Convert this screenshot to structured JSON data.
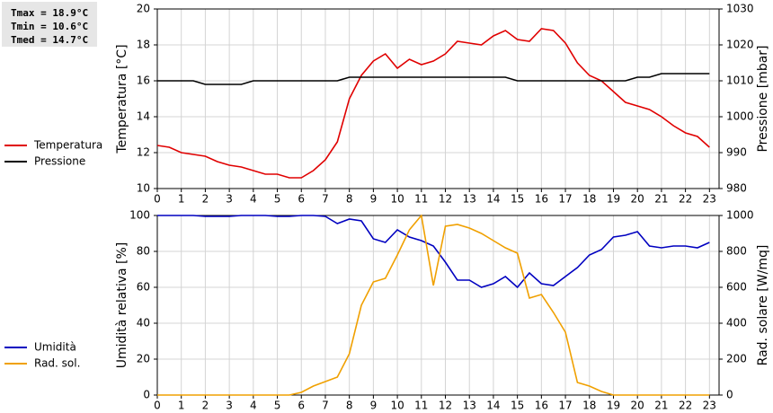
{
  "chart_data": [
    {
      "type": "line",
      "annotations": [
        "Tmax = 18.9°C",
        "Tmin = 10.6°C",
        "Tmed = 14.7°C"
      ],
      "ylabel": "Temperatura [°C]",
      "y2label": "Pressione [mbar]",
      "x": [
        0,
        0.5,
        1,
        1.5,
        2,
        2.5,
        3,
        3.5,
        4,
        4.5,
        5,
        5.5,
        6,
        6.5,
        7,
        7.5,
        8,
        8.5,
        9,
        9.5,
        10,
        10.5,
        11,
        11.5,
        12,
        12.5,
        13,
        13.5,
        14,
        14.5,
        15,
        15.5,
        16,
        16.5,
        17,
        17.5,
        18,
        18.5,
        19,
        19.5,
        20,
        20.5,
        21,
        21.5,
        22,
        22.5,
        23
      ],
      "xlim": [
        0,
        23.4
      ],
      "xticks": [
        0,
        1,
        2,
        3,
        4,
        5,
        6,
        7,
        8,
        9,
        10,
        11,
        12,
        13,
        14,
        15,
        16,
        17,
        18,
        19,
        20,
        21,
        22,
        23
      ],
      "ylim": [
        10,
        20
      ],
      "yticks": [
        10,
        12,
        14,
        16,
        18,
        20
      ],
      "y2lim": [
        980,
        1030
      ],
      "y2ticks": [
        980,
        990,
        1000,
        1010,
        1020,
        1030
      ],
      "grid": true,
      "series": [
        {
          "name": "Temperatura",
          "color": "#e00000",
          "values": [
            12.4,
            12.3,
            12.0,
            11.9,
            11.8,
            11.5,
            11.3,
            11.2,
            11.0,
            10.8,
            10.8,
            10.6,
            10.6,
            11.0,
            11.6,
            12.6,
            15.0,
            16.3,
            17.1,
            17.5,
            16.7,
            17.2,
            16.9,
            17.1,
            17.5,
            18.2,
            18.1,
            18.0,
            18.5,
            18.8,
            18.3,
            18.2,
            18.9,
            18.8,
            18.1,
            17.0,
            16.3,
            16.0,
            15.4,
            14.8,
            14.6,
            14.4,
            14.0,
            13.5,
            13.1,
            12.9,
            12.3
          ]
        },
        {
          "name": "Pressione",
          "color": "#000000",
          "axis": "y2",
          "values": [
            1010,
            1010,
            1010,
            1010,
            1009,
            1009,
            1009,
            1009,
            1010,
            1010,
            1010,
            1010,
            1010,
            1010,
            1010,
            1010,
            1011,
            1011,
            1011,
            1011,
            1011,
            1011,
            1011,
            1011,
            1011,
            1011,
            1011,
            1011,
            1011,
            1011,
            1010,
            1010,
            1010,
            1010,
            1010,
            1010,
            1010,
            1010,
            1010,
            1010,
            1011,
            1011,
            1012,
            1012,
            1012,
            1012,
            1012
          ]
        }
      ]
    },
    {
      "type": "line",
      "ylabel": "Umidità relativa [%]",
      "y2label": "Rad. solare [W/mq]",
      "x": [
        0,
        0.5,
        1,
        1.5,
        2,
        2.5,
        3,
        3.5,
        4,
        4.5,
        5,
        5.5,
        6,
        6.5,
        7,
        7.5,
        8,
        8.5,
        9,
        9.5,
        10,
        10.5,
        11,
        11.5,
        12,
        12.5,
        13,
        13.5,
        14,
        14.5,
        15,
        15.5,
        16,
        16.5,
        17,
        17.5,
        18,
        18.5,
        19,
        19.5,
        20,
        20.5,
        21,
        21.5,
        22,
        22.5,
        23
      ],
      "xlim": [
        0,
        23.4
      ],
      "xticks": [
        0,
        1,
        2,
        3,
        4,
        5,
        6,
        7,
        8,
        9,
        10,
        11,
        12,
        13,
        14,
        15,
        16,
        17,
        18,
        19,
        20,
        21,
        22,
        23
      ],
      "ylim": [
        0,
        100
      ],
      "yticks": [
        0,
        20,
        40,
        60,
        80,
        100
      ],
      "y2lim": [
        0,
        1000
      ],
      "y2ticks": [
        0,
        200,
        400,
        600,
        800,
        1000
      ],
      "grid": true,
      "series": [
        {
          "name": "Umidità",
          "color": "#0000c0",
          "values": [
            100,
            100,
            100,
            100,
            99.5,
            99.5,
            99.5,
            100,
            100,
            100,
            99.5,
            99.5,
            100,
            100,
            99.5,
            95.5,
            98,
            97,
            87,
            85,
            92,
            88,
            86,
            83,
            74,
            64,
            64,
            60,
            62,
            66,
            60,
            68,
            62,
            61,
            66,
            71,
            78,
            81,
            88,
            89,
            91,
            83,
            82,
            83,
            83,
            82,
            85
          ]
        },
        {
          "name": "Rad. sol.",
          "color": "#f0a000",
          "axis": "y2",
          "values": [
            0,
            0,
            0,
            0,
            0,
            0,
            0,
            0,
            0,
            0,
            0,
            0,
            15,
            50,
            75,
            100,
            230,
            500,
            630,
            650,
            780,
            920,
            1000,
            610,
            940,
            950,
            930,
            900,
            860,
            820,
            790,
            540,
            560,
            460,
            350,
            70,
            50,
            20,
            0,
            0,
            0,
            0,
            0,
            0,
            0,
            0,
            0
          ]
        }
      ]
    }
  ]
}
